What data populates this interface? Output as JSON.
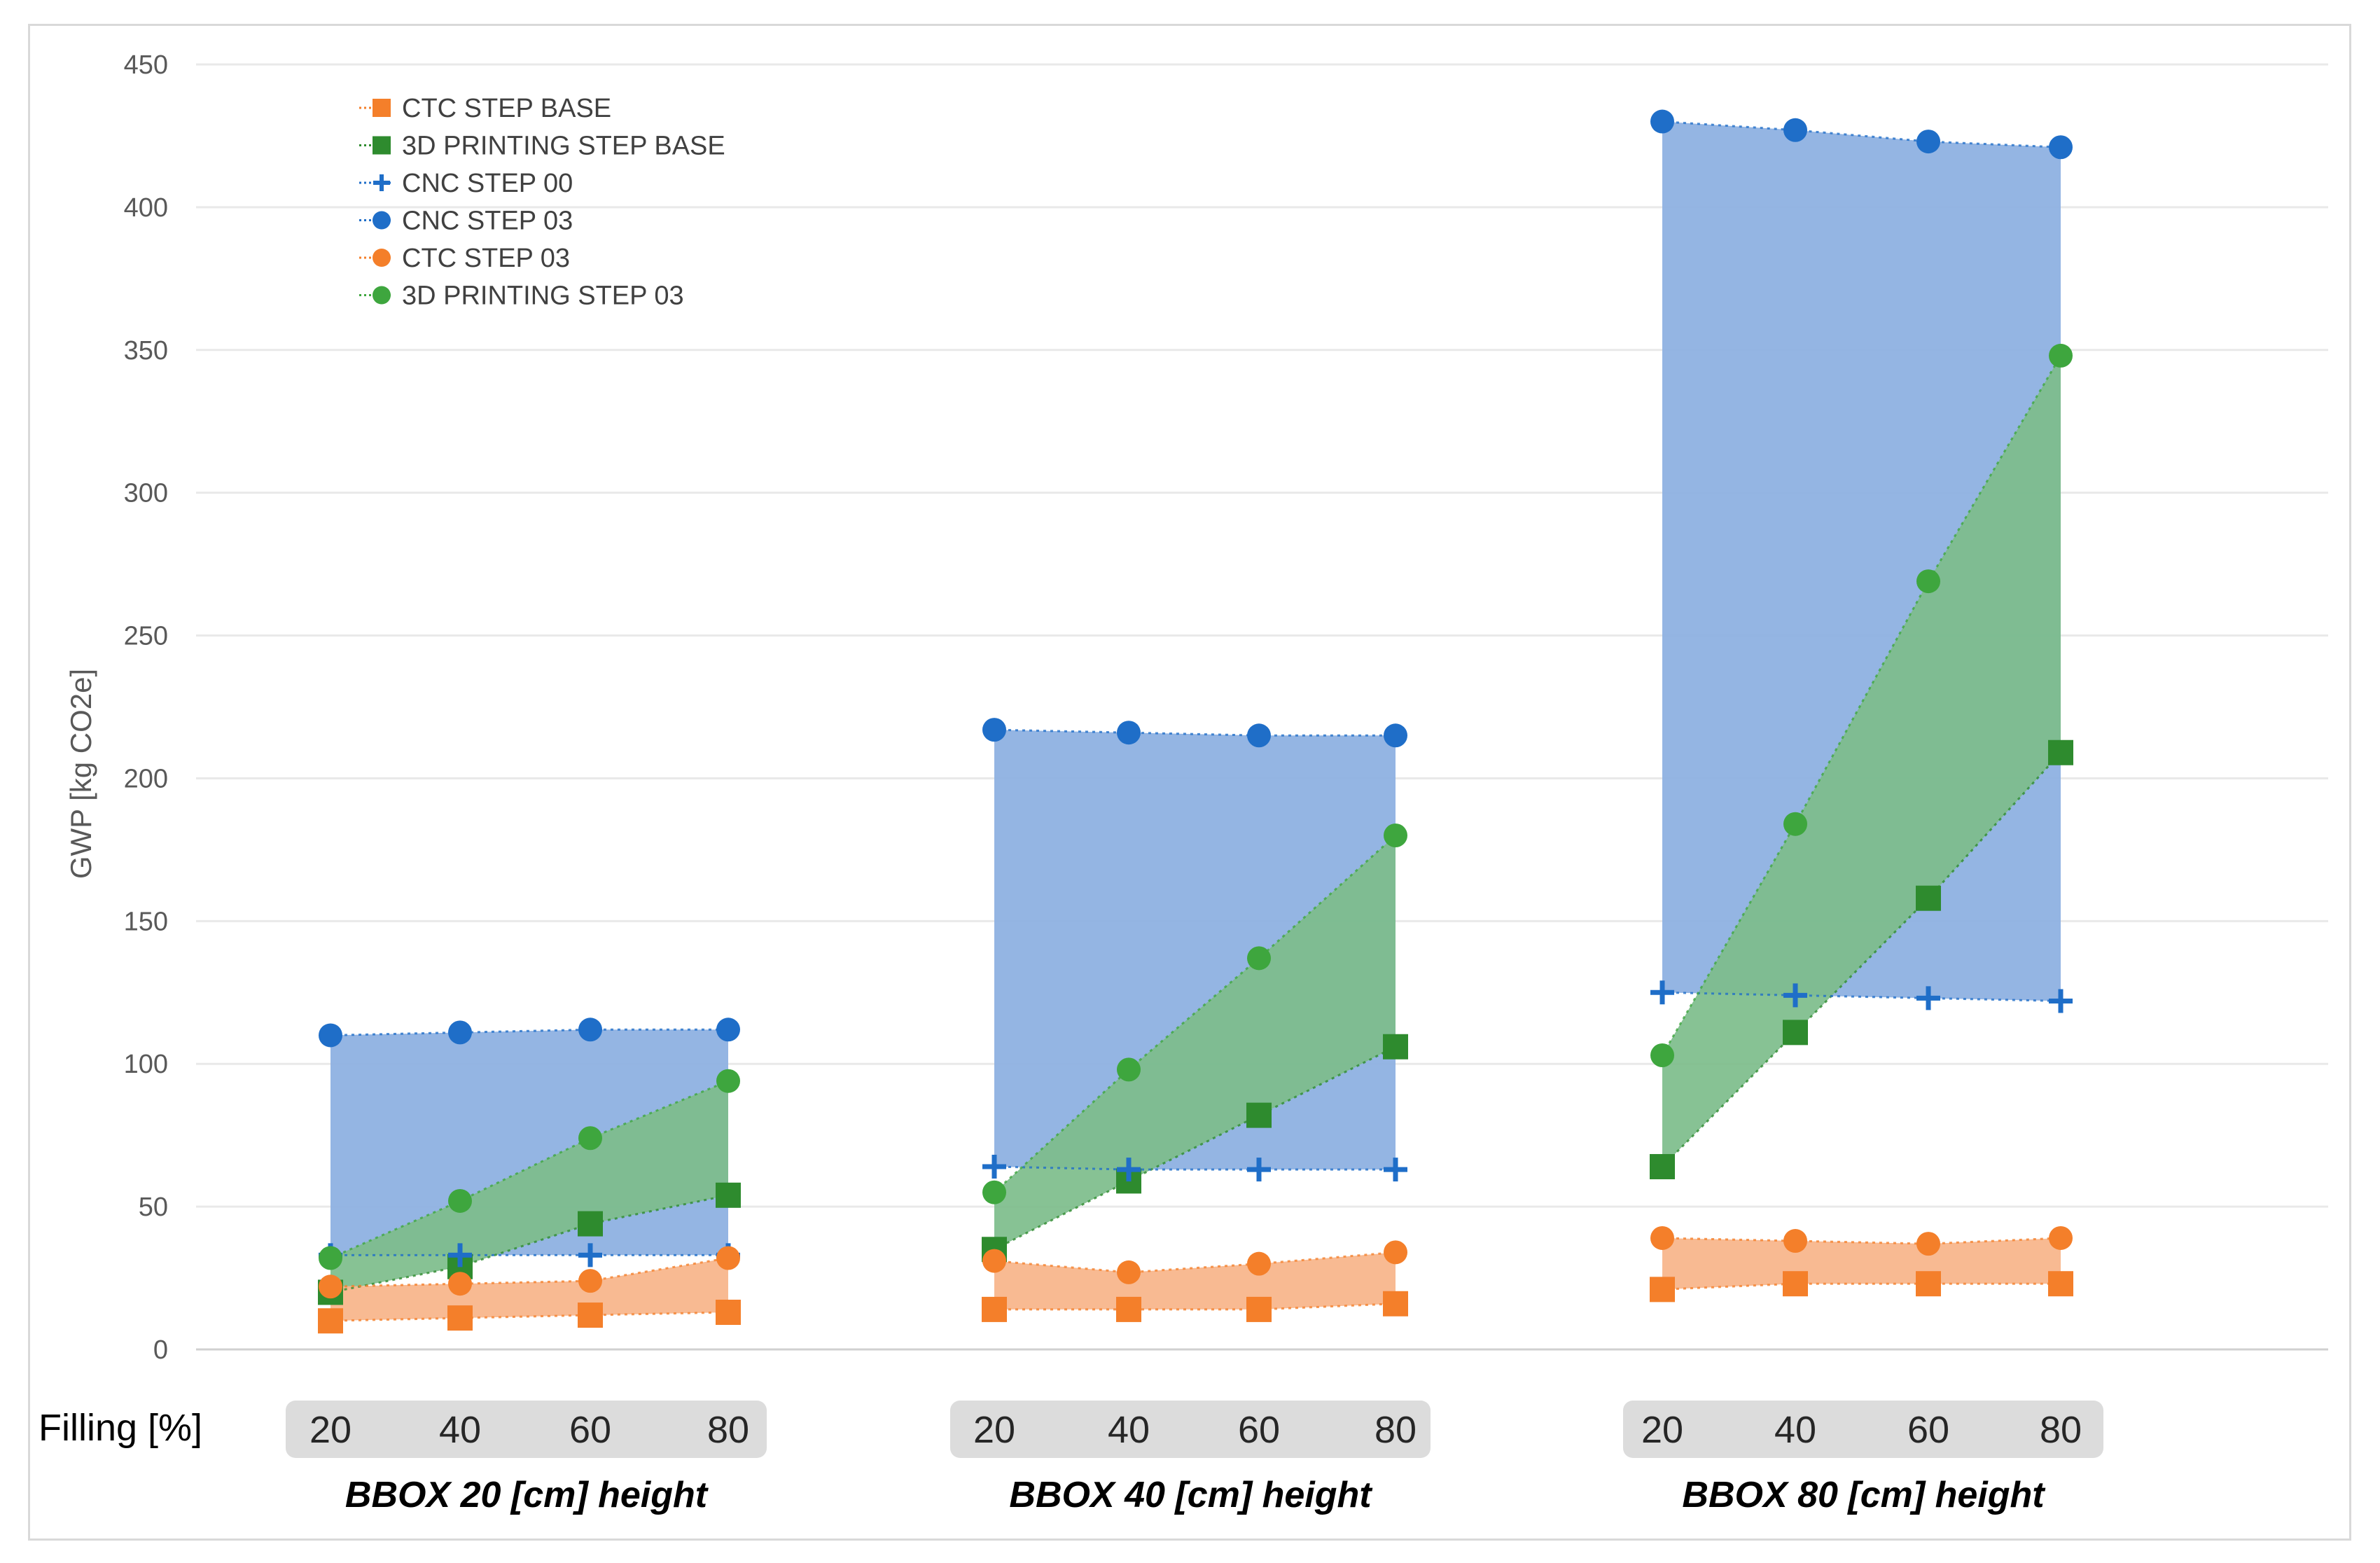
{
  "chart_data": {
    "type": "line",
    "ylabel": "GWP [kg CO2e]",
    "ylim": [
      0,
      450
    ],
    "yticks": [
      0,
      50,
      100,
      150,
      200,
      250,
      300,
      350,
      400,
      450
    ],
    "x_axis_label": "Filling [%]",
    "x_ticks": [
      "20",
      "40",
      "60",
      "80"
    ],
    "grid": "horizontal",
    "legend_position": "top-left",
    "groups": [
      {
        "label": "BBOX 20 [cm] height",
        "series": [
          {
            "name": "CTC STEP BASE",
            "values": [
              10,
              11,
              12,
              13
            ]
          },
          {
            "name": "3D PRINTING STEP BASE",
            "values": [
              20,
              29,
              44,
              54
            ]
          },
          {
            "name": "CNC STEP 00",
            "values": [
              33,
              33,
              33,
              33
            ]
          },
          {
            "name": "CNC STEP 03",
            "values": [
              110,
              111,
              112,
              112
            ]
          },
          {
            "name": "CTC STEP 03",
            "values": [
              22,
              23,
              24,
              32
            ]
          },
          {
            "name": "3D PRINTING STEP 03",
            "values": [
              32,
              52,
              74,
              94
            ]
          }
        ]
      },
      {
        "label": "BBOX 40 [cm] height",
        "series": [
          {
            "name": "CTC STEP BASE",
            "values": [
              14,
              14,
              14,
              16
            ]
          },
          {
            "name": "3D PRINTING STEP BASE",
            "values": [
              35,
              59,
              82,
              106
            ]
          },
          {
            "name": "CNC STEP 00",
            "values": [
              64,
              63,
              63,
              63
            ]
          },
          {
            "name": "CNC STEP 03",
            "values": [
              217,
              216,
              215,
              215
            ]
          },
          {
            "name": "CTC STEP 03",
            "values": [
              31,
              27,
              30,
              34
            ]
          },
          {
            "name": "3D PRINTING STEP 03",
            "values": [
              55,
              98,
              137,
              180
            ]
          }
        ]
      },
      {
        "label": "BBOX 80 [cm] height",
        "series": [
          {
            "name": "CTC STEP BASE",
            "values": [
              21,
              23,
              23,
              23
            ]
          },
          {
            "name": "3D PRINTING STEP BASE",
            "values": [
              64,
              111,
              158,
              209
            ]
          },
          {
            "name": "CNC STEP 00",
            "values": [
              125,
              124,
              123,
              122
            ]
          },
          {
            "name": "CNC STEP 03",
            "values": [
              430,
              427,
              423,
              421
            ]
          },
          {
            "name": "CTC STEP 03",
            "values": [
              39,
              38,
              37,
              39
            ]
          },
          {
            "name": "3D PRINTING STEP 03",
            "values": [
              103,
              184,
              269,
              348
            ]
          }
        ]
      }
    ],
    "legend": [
      {
        "name": "CTC STEP BASE",
        "marker": "square",
        "color": "#F47F2A"
      },
      {
        "name": "3D PRINTING STEP BASE",
        "marker": "square",
        "color": "#2E8B2E"
      },
      {
        "name": "CNC STEP 00",
        "marker": "plus",
        "color": "#1F6EC8"
      },
      {
        "name": "CNC STEP 03",
        "marker": "circle",
        "color": "#1F6EC8"
      },
      {
        "name": "CTC STEP 03",
        "marker": "circle",
        "color": "#F47F2A"
      },
      {
        "name": "3D PRINTING STEP 03",
        "marker": "circle",
        "color": "#3EA63E"
      }
    ],
    "colors": {
      "blue_band": "#8EB1E2",
      "green_band": "#6AAF8A",
      "light_green_band": "#9FD68C",
      "orange_band": "#F8B68C",
      "grid": "#e9e9e9",
      "tick_box": "#dcdcdc"
    }
  }
}
